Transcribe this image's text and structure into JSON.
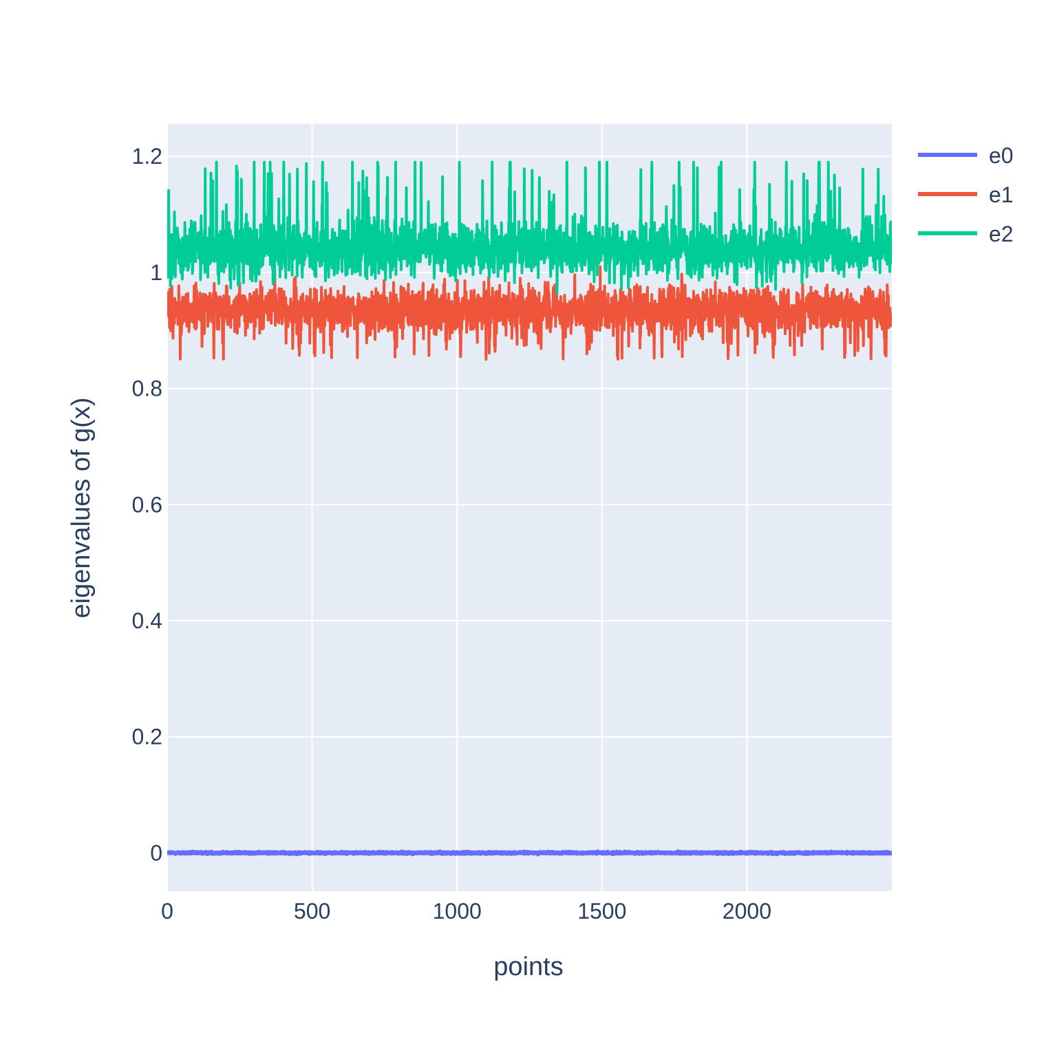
{
  "chart_data": {
    "type": "line",
    "xlabel": "points",
    "ylabel": "eigenvalues of g(x)",
    "xlim": [
      0,
      2500
    ],
    "ylim": [
      -0.066,
      1.256
    ],
    "xticks": [
      0,
      500,
      1000,
      1500,
      2000
    ],
    "xtick_labels": [
      "0",
      "500",
      "1000",
      "1500",
      "2000"
    ],
    "yticks": [
      0,
      0.2,
      0.4,
      0.6,
      0.8,
      1,
      1.2
    ],
    "ytick_labels": [
      "0",
      "0.2",
      "0.4",
      "0.6",
      "0.8",
      "1",
      "1.2"
    ],
    "grid": true,
    "legend_position": "top-right",
    "n_points": 2500,
    "series": [
      {
        "name": "e0",
        "color": "#636efa",
        "center": 0.0,
        "spread": 0.002,
        "min": -0.003,
        "max": 0.003
      },
      {
        "name": "e1",
        "color": "#ef553b",
        "center": 0.935,
        "spread": 0.05,
        "min": 0.85,
        "max": 1.01
      },
      {
        "name": "e2",
        "color": "#00cc96",
        "center": 1.04,
        "spread": 0.06,
        "min": 0.95,
        "max": 1.19
      }
    ]
  }
}
